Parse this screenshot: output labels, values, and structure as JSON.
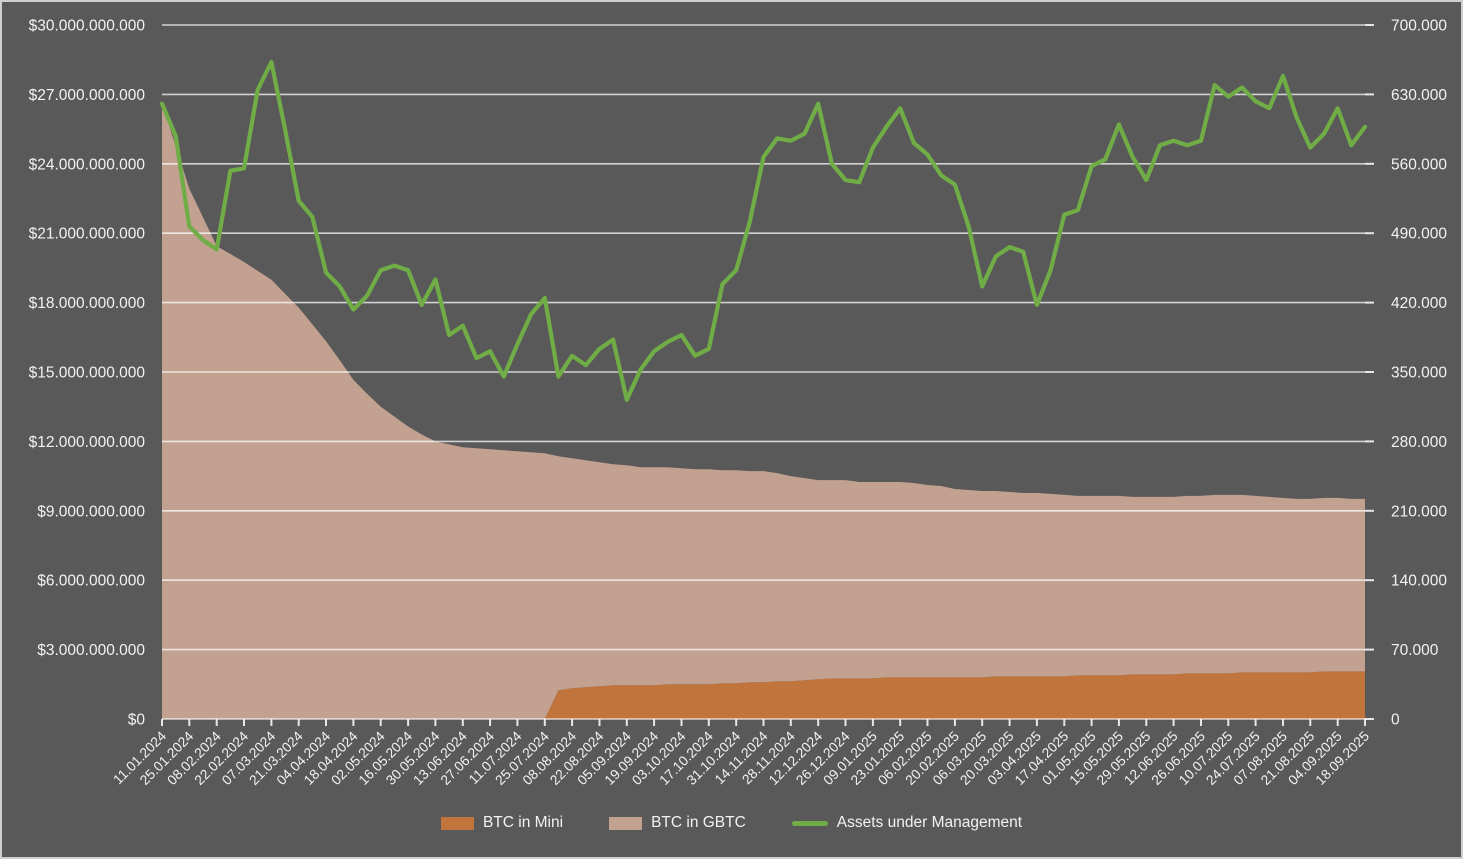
{
  "window": {
    "title": "GBTC / Mini BTC holdings vs Assets under Management"
  },
  "colors": {
    "background": "#595959",
    "frame_border": "#cfcfcf",
    "gridline": "rgba(255,255,255,0.72)",
    "axis_text": "#F2F2F2",
    "tick_mark": "rgba(255,255,255,0.85)",
    "mini_area": "#C1743C",
    "gbtc_area": "#C2A191",
    "aum_line": "#70AD47"
  },
  "legend": {
    "items": [
      {
        "label": "BTC in Mini",
        "color": "#C1743C",
        "type": "area"
      },
      {
        "label": "BTC in GBTC",
        "color": "#C2A191",
        "type": "area"
      },
      {
        "label": "Assets under Management",
        "color": "#70AD47",
        "type": "line"
      }
    ]
  },
  "chart_data": {
    "type": "area",
    "subtype": "stacked-area with overlay line (combo, dual axis)",
    "title": "",
    "xlabel": "",
    "ylabel_left": "",
    "ylabel_right": "",
    "grid": true,
    "legend_position": "bottom-center",
    "y_left": {
      "min": 0,
      "max": 30000000000,
      "step": 3000000000,
      "tick_labels": [
        "$30.000.000.000",
        "$27.000.000.000",
        "$24.000.000.000",
        "$21.000.000.000",
        "$18.000.000.000",
        "$15.000.000.000",
        "$12.000.000.000",
        "$9.000.000.000",
        "$6.000.000.000",
        "$3.000.000.000",
        "$0"
      ]
    },
    "y_right": {
      "min": 0,
      "max": 700000,
      "step": 70000,
      "tick_labels": [
        "700.000",
        "630.000",
        "560.000",
        "490.000",
        "420.000",
        "350.000",
        "280.000",
        "210.000",
        "140.000",
        "70.000",
        "0"
      ]
    },
    "categories_biweekly": [
      "11.01.2024",
      "25.01.2024",
      "08.02.2024",
      "22.02.2024",
      "07.03.2024",
      "21.03.2024",
      "04.04.2024",
      "18.04.2024",
      "02.05.2024",
      "16.05.2024",
      "30.05.2024",
      "13.06.2024",
      "27.06.2024",
      "11.07.2024",
      "25.07.2024",
      "08.08.2024",
      "22.08.2024",
      "05.09.2024",
      "19.09.2024",
      "03.10.2024",
      "17.10.2024",
      "31.10.2024",
      "14.11.2024",
      "28.11.2024",
      "12.12.2024",
      "26.12.2024",
      "09.01.2025",
      "23.01.2025",
      "06.02.2025",
      "20.02.2025",
      "06.03.2025",
      "20.03.2025",
      "03.04.2025",
      "17.04.2025",
      "01.05.2025",
      "15.05.2025",
      "29.05.2025",
      "12.06.2025",
      "26.06.2025",
      "10.07.2025",
      "24.07.2025",
      "07.08.2025",
      "21.08.2025",
      "04.09.2025",
      "18.09.2025"
    ],
    "sampling_note": "series below are weekly estimates read off the chart: 89 evenly spaced points from 11.01.2024 to 18.09.2025 (two per bi-weekly category)",
    "series": [
      {
        "name": "BTC in Mini",
        "type": "area",
        "stacked": true,
        "axis": "right",
        "unit": "BTC",
        "values_btc_thousands": [
          0,
          0,
          0,
          0,
          0,
          0,
          0,
          0,
          0,
          0,
          0,
          0,
          0,
          0,
          0,
          0,
          0,
          0,
          0,
          0,
          0,
          0,
          0,
          0,
          0,
          0,
          0,
          0,
          0,
          29,
          31,
          32,
          33,
          34,
          34,
          34,
          34,
          35,
          35,
          35,
          35,
          36,
          36,
          37,
          37,
          38,
          38,
          39,
          40,
          41,
          41,
          41,
          41,
          42,
          42,
          42,
          42,
          42,
          42,
          42,
          42,
          43,
          43,
          43,
          43,
          43,
          43,
          44,
          44,
          44,
          44,
          45,
          45,
          45,
          45,
          46,
          46,
          46,
          46,
          47,
          47,
          47,
          47,
          47,
          47,
          48,
          48,
          48,
          48
        ]
      },
      {
        "name": "BTC in GBTC",
        "type": "area",
        "stacked": true,
        "axis": "right",
        "unit": "BTC",
        "values_btc_thousands": [
          621,
          578,
          535,
          506,
          477,
          469,
          461,
          452,
          443,
          429,
          415,
          398,
          381,
          362,
          342,
          328,
          315,
          305,
          295,
          287,
          280,
          277,
          274,
          273,
          272,
          271,
          270,
          269,
          268,
          236,
          232,
          229,
          226,
          223,
          222,
          220,
          220,
          219,
          218,
          217,
          217,
          215,
          215,
          213,
          213,
          210,
          207,
          204,
          201,
          200,
          200,
          198,
          198,
          197,
          197,
          196,
          194,
          193,
          190,
          189,
          188,
          187,
          186,
          185,
          185,
          184,
          183,
          181,
          181,
          181,
          181,
          179,
          179,
          179,
          179,
          179,
          179,
          180,
          180,
          179,
          178,
          177,
          176,
          175,
          175,
          175,
          175,
          174,
          174
        ]
      },
      {
        "name": "Assets under Management",
        "type": "line",
        "axis": "left",
        "unit": "USD billions",
        "values_usd_billions": [
          26.6,
          25.2,
          21.3,
          20.7,
          20.3,
          23.7,
          23.8,
          27.2,
          28.4,
          25.5,
          22.4,
          21.7,
          19.3,
          18.7,
          17.7,
          18.3,
          19.4,
          19.6,
          19.4,
          17.9,
          19.0,
          16.6,
          17.0,
          15.6,
          15.9,
          14.8,
          16.2,
          17.5,
          18.2,
          14.8,
          15.7,
          15.3,
          16.0,
          16.4,
          13.8,
          15.1,
          15.9,
          16.3,
          16.6,
          15.7,
          16.0,
          18.8,
          19.4,
          21.5,
          24.3,
          25.1,
          25.0,
          25.3,
          26.6,
          24.0,
          23.3,
          23.2,
          24.7,
          25.6,
          26.4,
          24.9,
          24.4,
          23.5,
          23.1,
          21.3,
          18.7,
          20.0,
          20.4,
          20.2,
          17.9,
          19.4,
          21.8,
          22.0,
          23.9,
          24.2,
          25.7,
          24.3,
          23.3,
          24.8,
          25.0,
          24.8,
          25.0,
          27.4,
          26.9,
          27.3,
          26.7,
          26.4,
          27.8,
          26.0,
          24.7,
          25.3,
          26.4,
          24.8,
          25.6
        ]
      }
    ]
  }
}
